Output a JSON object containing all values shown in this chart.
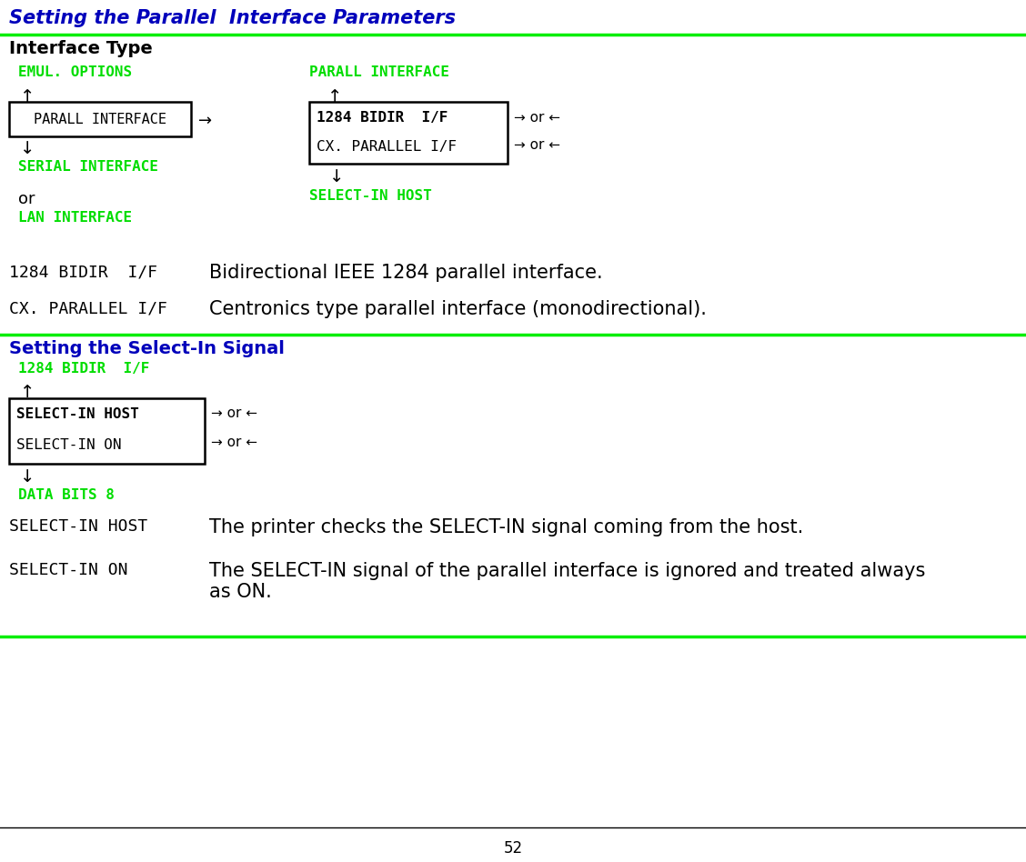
{
  "title": "Setting the Parallel  Interface Parameters",
  "section1_header": "Interface Type",
  "section2_header": "Setting the Select-In Signal",
  "page_number": "52",
  "green_color": "#00DD00",
  "dark_blue": "#0000BB",
  "black": "#000000",
  "bg_color": "#FFFFFF",
  "green_line_color": "#00EE00",
  "emul_options": "EMUL. OPTIONS",
  "parall_interface_label": "PARALL INTERFACE",
  "parall_interface_box": "PARALL INTERFACE",
  "bidir_if_box": "1284 BIDIR  I/F",
  "cx_parallel_box": "CX. PARALLEL I/F",
  "serial_interface": "SERIAL INTERFACE",
  "or_text": "or",
  "select_in_host_label": "SELECT-IN HOST",
  "lan_interface": "LAN INTERFACE",
  "arrow_right": "→",
  "arrow_left": "←",
  "arrow_up": "↑",
  "arrow_down": "↓",
  "arrow_rl": "→ or ←",
  "bidir_desc_label": "1284 BIDIR  I/F",
  "bidir_desc": "Bidirectional IEEE 1284 parallel interface.",
  "cx_desc_label": "CX. PARALLEL I/F",
  "cx_desc": "Centronics type parallel interface (monodirectional).",
  "bidir_if_label2": "1284 BIDIR  I/F",
  "select_in_host_box": "SELECT-IN HOST",
  "select_in_on_box": "SELECT-IN ON",
  "data_bits": "DATA BITS 8",
  "sel_host_label": "SELECT-IN HOST",
  "sel_host_desc": "The printer checks the SELECT-IN signal coming from the host.",
  "sel_on_label": "SELECT-IN ON",
  "sel_on_desc": "The SELECT-IN signal of the parallel interface is ignored and treated always\nas ON."
}
